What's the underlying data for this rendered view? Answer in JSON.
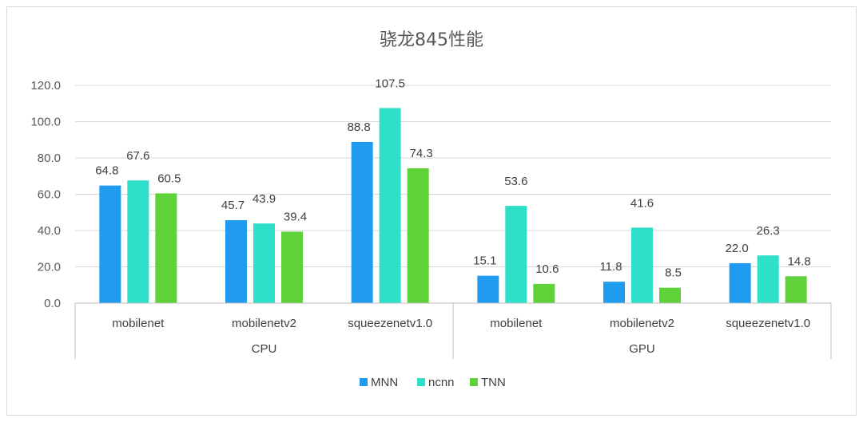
{
  "chart_data": {
    "type": "bar",
    "title": "骁龙845性能",
    "ylim": [
      0,
      120
    ],
    "yticks": [
      "0.0",
      "20.0",
      "40.0",
      "60.0",
      "80.0",
      "100.0",
      "120.0"
    ],
    "groups": [
      {
        "name": "CPU",
        "categories": [
          "mobilenet",
          "mobilenetv2",
          "squeezenetv1.0"
        ]
      },
      {
        "name": "GPU",
        "categories": [
          "mobilenet",
          "mobilenetv2",
          "squeezenetv1.0"
        ]
      }
    ],
    "series": [
      {
        "name": "MNN",
        "color": "#1f9bef",
        "values": [
          64.8,
          45.7,
          88.8,
          15.1,
          11.8,
          22.0
        ],
        "labels": [
          "64.8",
          "45.7",
          "88.8",
          "15.1",
          "11.8",
          "22.0"
        ]
      },
      {
        "name": "ncnn",
        "color": "#2ee0c9",
        "values": [
          67.6,
          43.9,
          107.5,
          53.6,
          41.6,
          26.3
        ],
        "labels": [
          "67.6",
          "43.9",
          "107.5",
          "53.6",
          "41.6",
          "26.3"
        ]
      },
      {
        "name": "TNN",
        "color": "#5fd139",
        "values": [
          60.5,
          39.4,
          74.3,
          10.6,
          8.5,
          14.8
        ],
        "labels": [
          "60.5",
          "39.4",
          "74.3",
          "10.6",
          "8.5",
          "14.8"
        ]
      }
    ],
    "grid": true,
    "legend": "bottom"
  }
}
